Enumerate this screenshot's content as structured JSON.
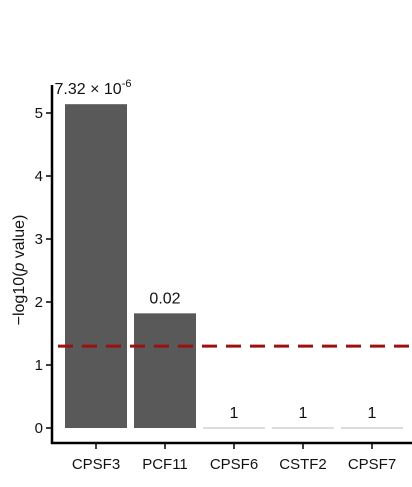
{
  "chart_data": {
    "type": "bar",
    "categories": [
      "CPSF3",
      "PCF11",
      "CPSF6",
      "CSTF2",
      "CPSF7"
    ],
    "values": [
      5.14,
      1.82,
      0.0,
      0.0,
      0.0
    ],
    "bar_labels": [
      "7.32 × 10",
      "0.02",
      "1",
      "1",
      "1"
    ],
    "bar_label_superscripts": [
      "-6",
      "",
      "",
      "",
      ""
    ],
    "ylabel_parts": [
      "−log10(",
      "p",
      " value)"
    ],
    "ylim": [
      0,
      5.3
    ],
    "yticks": [
      0,
      1,
      2,
      3,
      4,
      5
    ],
    "threshold": 1.3,
    "colors": {
      "bar": "#595959",
      "threshold": "#9b1010",
      "axis": "#000000"
    }
  }
}
